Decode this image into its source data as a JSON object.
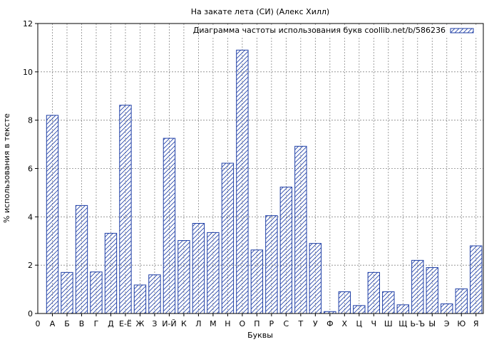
{
  "chart_data": {
    "type": "bar",
    "title": "На закате лета (СИ) (Алекс Хилл)",
    "xlabel": "Буквы",
    "ylabel": "% использования в тексте",
    "legend": {
      "label": "Диаграмма частоты использования букв coollib.net/b/586236",
      "placement": "top-right"
    },
    "x_origin_label": "0",
    "categories": [
      "А",
      "Б",
      "В",
      "Г",
      "Д",
      "Е-Ё",
      "Ж",
      "З",
      "И-Й",
      "К",
      "Л",
      "М",
      "Н",
      "О",
      "П",
      "Р",
      "С",
      "Т",
      "У",
      "Ф",
      "Х",
      "Ц",
      "Ч",
      "Ш",
      "Щ",
      "Ь-Ъ",
      "Ы",
      "Э",
      "Ю",
      "Я"
    ],
    "values": [
      8.2,
      1.7,
      4.47,
      1.72,
      3.32,
      8.62,
      1.18,
      1.6,
      7.25,
      3.02,
      3.73,
      3.35,
      6.22,
      10.9,
      2.63,
      4.05,
      5.23,
      6.92,
      2.9,
      0.08,
      0.9,
      0.33,
      1.7,
      0.9,
      0.36,
      2.2,
      1.9,
      0.4,
      1.02,
      2.8
    ],
    "ylim": [
      0,
      12
    ],
    "yticks": [
      0,
      2,
      4,
      6,
      8,
      10,
      12
    ],
    "grid": true,
    "colors": {
      "bar_edge": "#1f3fa6",
      "hatch": "#1f3fa6",
      "grid": "#888888"
    }
  }
}
